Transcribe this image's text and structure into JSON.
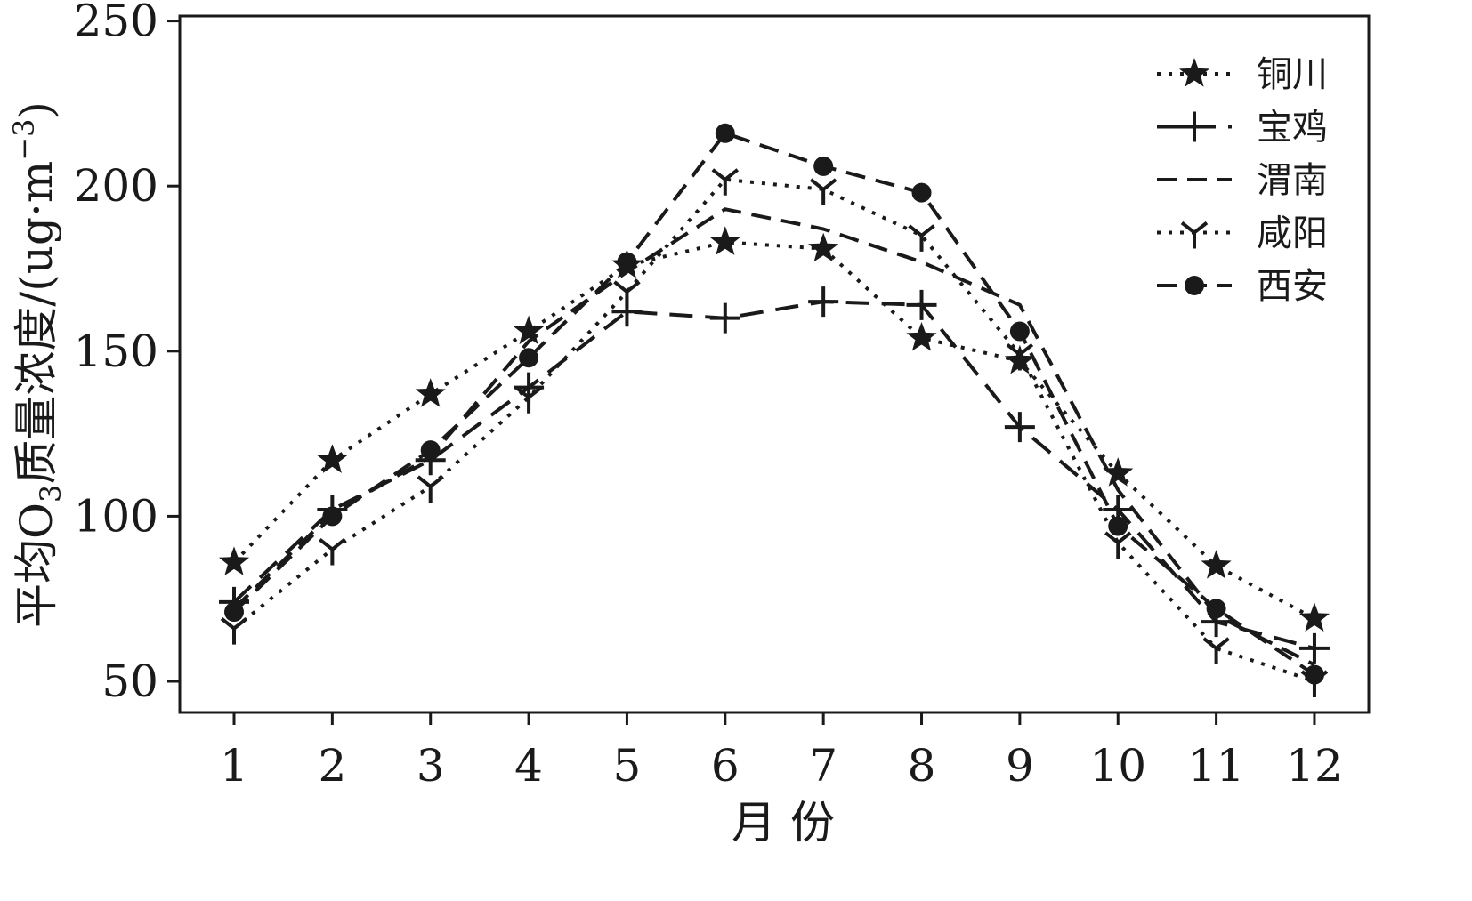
{
  "chart_data": {
    "type": "line",
    "title": "",
    "xlabel": "月 份",
    "ylabel": {
      "prefix": "平均O",
      "subscript": "3",
      "middle": "质量浓度/(ug·m",
      "superscript": "−3",
      "suffix": ")"
    },
    "x": [
      1,
      2,
      3,
      4,
      5,
      6,
      7,
      8,
      9,
      10,
      11,
      12
    ],
    "x_tick_labels": [
      "1",
      "2",
      "3",
      "4",
      "5",
      "6",
      "7",
      "8",
      "9",
      "10",
      "11",
      "12"
    ],
    "y_ticks": [
      50,
      100,
      150,
      200,
      250
    ],
    "y_tick_labels": [
      "50",
      "100",
      "150",
      "200",
      "250"
    ],
    "ylim": [
      40,
      250
    ],
    "grid": false,
    "legend_position": "top-right",
    "series": [
      {
        "name": "铜川",
        "line_style": "dotted",
        "marker": "star",
        "values": [
          86,
          117,
          137,
          156,
          176,
          183,
          181,
          154,
          147,
          113,
          85,
          69
        ]
      },
      {
        "name": "宝鸡",
        "line_style": "long-dash",
        "marker": "plus",
        "values": [
          74,
          102,
          117,
          139,
          162,
          160,
          165,
          164,
          127,
          102,
          68,
          60
        ]
      },
      {
        "name": "渭南",
        "line_style": "dashed",
        "marker": "none",
        "values": [
          72,
          101,
          118,
          153,
          174,
          193,
          187,
          177,
          164,
          108,
          70,
          55
        ]
      },
      {
        "name": "咸阳",
        "line_style": "dotted",
        "marker": "tri-down",
        "values": [
          66,
          90,
          109,
          136,
          168,
          202,
          199,
          185,
          149,
          92,
          60,
          50
        ]
      },
      {
        "name": "西安",
        "line_style": "dashed",
        "marker": "circle",
        "values": [
          71,
          100,
          120,
          148,
          177,
          216,
          206,
          198,
          156,
          97,
          72,
          52
        ]
      }
    ],
    "colors": {
      "line": "#1a1a1a",
      "background": "#ffffff"
    }
  }
}
